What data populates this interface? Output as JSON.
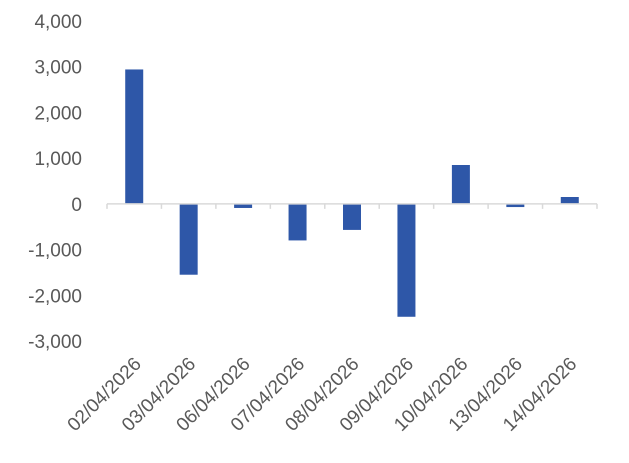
{
  "chart_data": {
    "type": "bar",
    "categories": [
      "02/04/2026",
      "03/04/2026",
      "06/04/2026",
      "07/04/2026",
      "08/04/2026",
      "09/04/2026",
      "10/04/2026",
      "13/04/2026",
      "14/04/2026"
    ],
    "values": [
      2940,
      -1550,
      -90,
      -800,
      -570,
      -2470,
      850,
      -70,
      150
    ],
    "ylim": [
      -3000,
      4000
    ],
    "yticks": [
      4000,
      3000,
      2000,
      1000,
      0,
      -1000,
      -2000,
      -3000
    ],
    "ytick_labels": [
      "4,000",
      "3,000",
      "2,000",
      "1,000",
      "0",
      "-1,000",
      "-2,000",
      "-3,000"
    ],
    "bar_color": "#2e57a8",
    "axis_color": "#d9d9d9",
    "grid": false,
    "legend": "none"
  }
}
